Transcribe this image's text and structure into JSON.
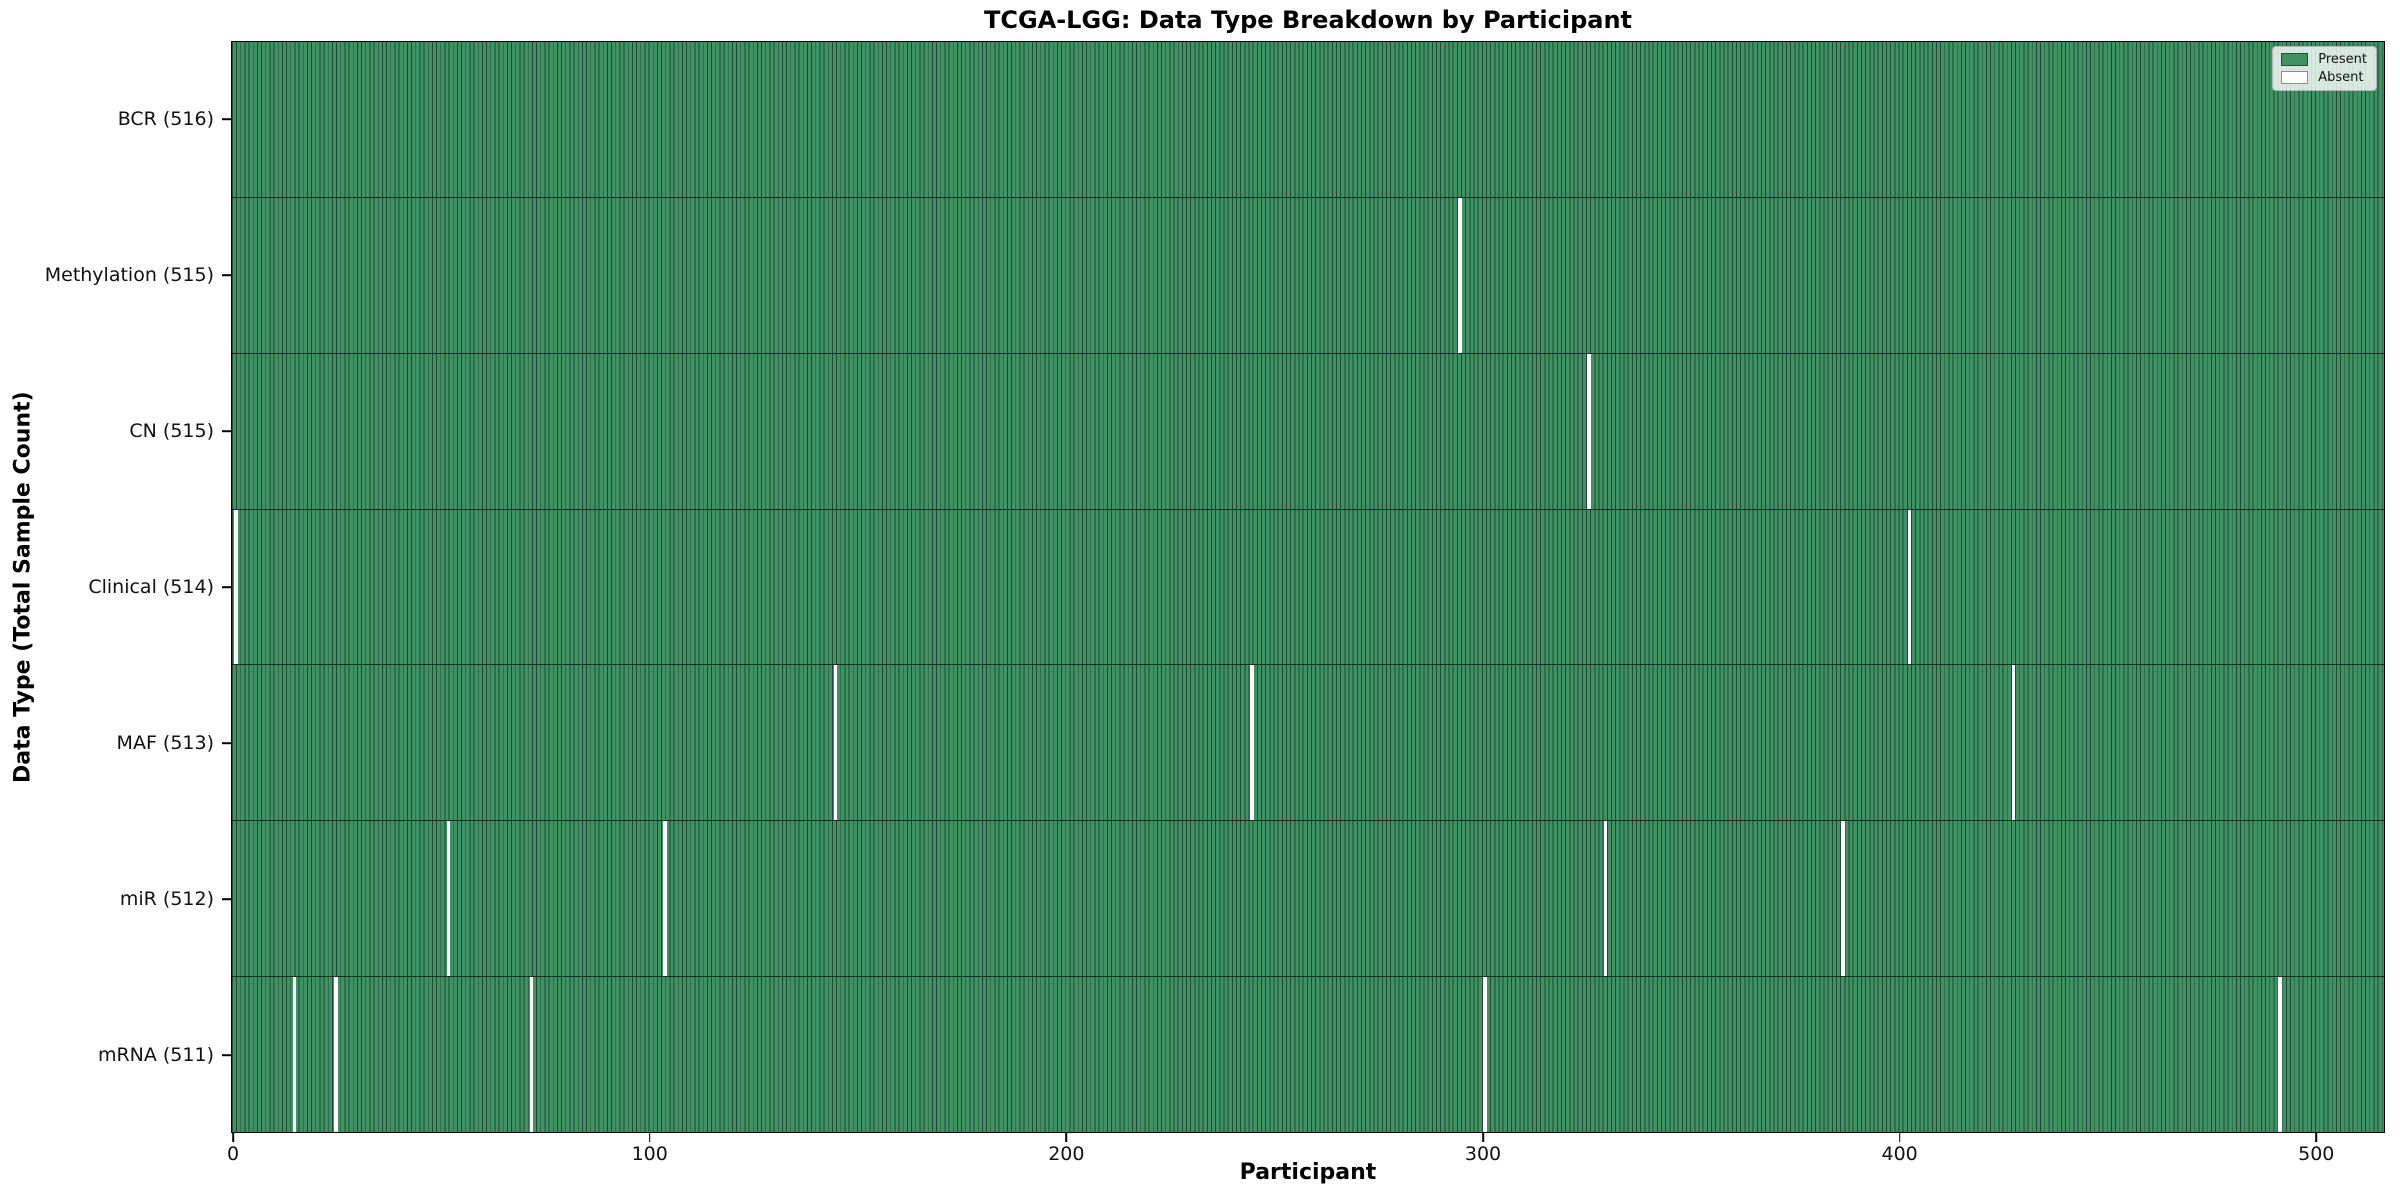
{
  "figure": {
    "title": "TCGA-LGG: Data Type Breakdown by Participant",
    "xlabel": "Participant",
    "ylabel": "Data Type (Total Sample Count)"
  },
  "legend": {
    "items": [
      {
        "label": "Present",
        "color": "#3E9264"
      },
      {
        "label": "Absent",
        "color": "#FFFFFF"
      }
    ],
    "position": "upper-right"
  },
  "colors": {
    "present_fill": "#3E9264",
    "absent_fill": "#FFFFFF",
    "cell_edge": "rgba(0,0,0,0.50)",
    "frame": "#000000",
    "background": "#FFFFFF"
  },
  "chart_data": {
    "type": "heatmap",
    "title": "TCGA-LGG: Data Type Breakdown by Participant",
    "xlabel": "Participant",
    "ylabel": "Data Type (Total Sample Count)",
    "legend_entries": [
      "Present",
      "Absent"
    ],
    "legend_position": "upper right",
    "grid": false,
    "n_participants": 516,
    "x_range": [
      -0.5,
      516.5
    ],
    "x_ticks": [
      0,
      100,
      200,
      300,
      400,
      500
    ],
    "value_encoding": {
      "present": 1,
      "absent": 0
    },
    "rows": [
      {
        "label": "BCR (516)",
        "data_type": "BCR",
        "present_count": 516,
        "absent_participants": []
      },
      {
        "label": "Methylation (515)",
        "data_type": "Methylation",
        "present_count": 515,
        "absent_participants": [
          294
        ]
      },
      {
        "label": "CN (515)",
        "data_type": "CN",
        "present_count": 515,
        "absent_participants": [
          325
        ]
      },
      {
        "label": "Clinical (514)",
        "data_type": "Clinical",
        "present_count": 514,
        "absent_participants": [
          0,
          402
        ]
      },
      {
        "label": "MAF (513)",
        "data_type": "MAF",
        "present_count": 513,
        "absent_participants": [
          144,
          244,
          427
        ]
      },
      {
        "label": "miR (512)",
        "data_type": "miR",
        "present_count": 512,
        "absent_participants": [
          51,
          103,
          329,
          386
        ]
      },
      {
        "label": "mRNA (511)",
        "data_type": "mRNA",
        "present_count": 511,
        "absent_participants": [
          14,
          24,
          71,
          300,
          491
        ]
      }
    ]
  }
}
